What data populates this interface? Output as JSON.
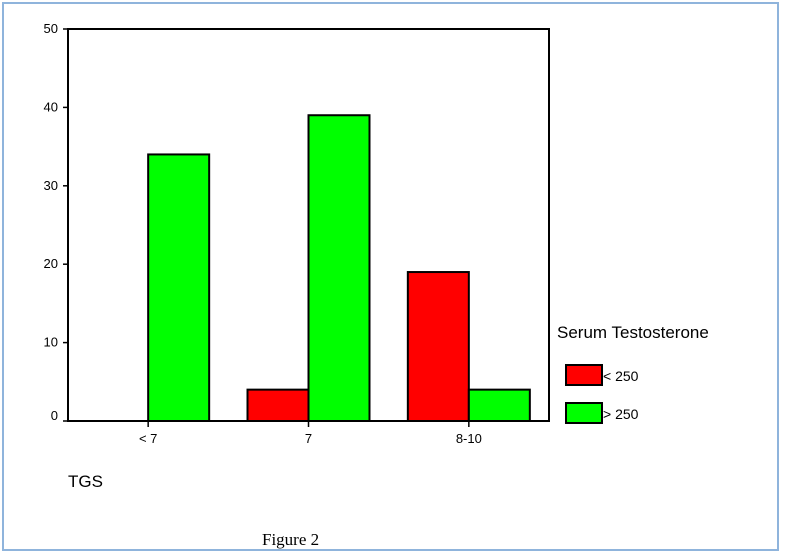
{
  "chart_data": {
    "type": "bar",
    "categories": [
      "< 7",
      "7",
      "8-10"
    ],
    "series": [
      {
        "name": "< 250",
        "values": [
          0,
          4,
          19
        ],
        "color": "#ff0000"
      },
      {
        "name": "> 250",
        "values": [
          34,
          39,
          4
        ],
        "color": "#00ff00"
      }
    ],
    "ylim": [
      0,
      50
    ],
    "yticks": [
      "0",
      "10",
      "20",
      "30",
      "40",
      "50"
    ],
    "xlabel": "TGS",
    "ylabel": "",
    "grid": false,
    "legend": {
      "title": "Serum Testosterone",
      "placement": "right"
    }
  },
  "caption": "Figure 2"
}
